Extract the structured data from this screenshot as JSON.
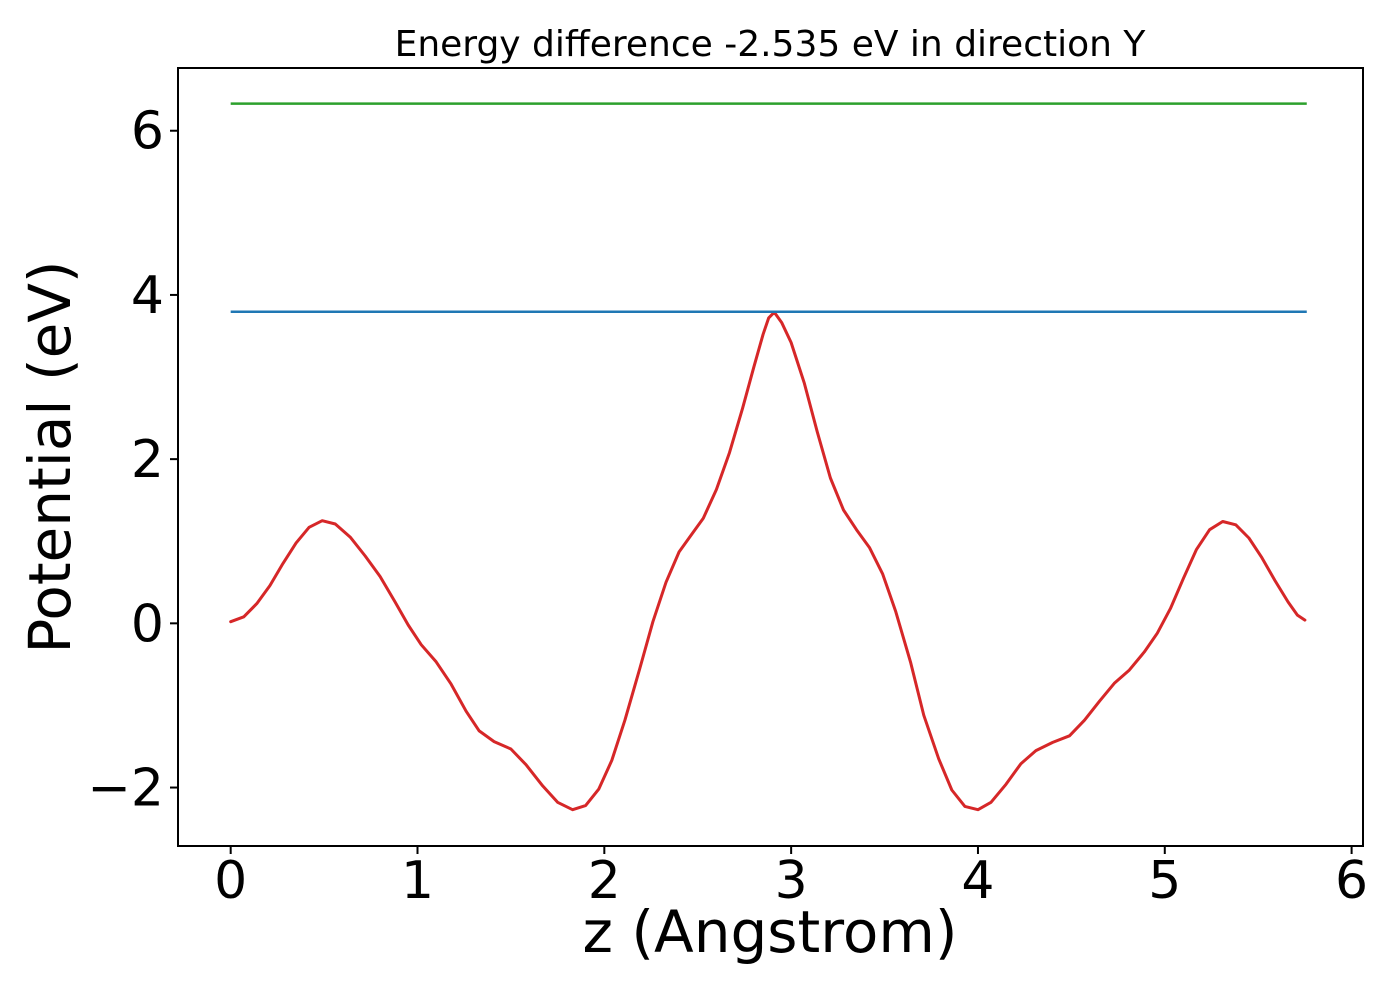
{
  "figure": {
    "background_color": "#ffffff",
    "text_color": "#000000",
    "axis_color": "#000000"
  },
  "chart_data": {
    "type": "line",
    "title": "Energy difference -2.535 eV in direction Y",
    "xlabel": "z (Angstrom)",
    "ylabel": "Potential (eV)",
    "xlim": [
      -0.282,
      6.061
    ],
    "ylim": [
      -2.712,
      6.764
    ],
    "grid": false,
    "legend": false,
    "x_ticks": [
      {
        "value": 0,
        "label": "0"
      },
      {
        "value": 1,
        "label": "1"
      },
      {
        "value": 2,
        "label": "2"
      },
      {
        "value": 3,
        "label": "3"
      },
      {
        "value": 4,
        "label": "4"
      },
      {
        "value": 5,
        "label": "5"
      },
      {
        "value": 6,
        "label": "6"
      }
    ],
    "y_ticks": [
      {
        "value": -2,
        "label": "−2"
      },
      {
        "value": 0,
        "label": "0"
      },
      {
        "value": 2,
        "label": "2"
      },
      {
        "value": 4,
        "label": "4"
      },
      {
        "value": 6,
        "label": "6"
      }
    ],
    "series": [
      {
        "name": "potential-profile",
        "kind": "curve",
        "color": "#d62728",
        "line_width": 3,
        "points": [
          [
            0.0,
            0.02
          ],
          [
            0.07,
            0.08
          ],
          [
            0.14,
            0.24
          ],
          [
            0.21,
            0.46
          ],
          [
            0.28,
            0.73
          ],
          [
            0.35,
            0.98
          ],
          [
            0.42,
            1.17
          ],
          [
            0.49,
            1.25
          ],
          [
            0.56,
            1.21
          ],
          [
            0.64,
            1.05
          ],
          [
            0.72,
            0.82
          ],
          [
            0.8,
            0.57
          ],
          [
            0.88,
            0.26
          ],
          [
            0.95,
            -0.02
          ],
          [
            1.02,
            -0.26
          ],
          [
            1.1,
            -0.47
          ],
          [
            1.18,
            -0.74
          ],
          [
            1.26,
            -1.07
          ],
          [
            1.33,
            -1.31
          ],
          [
            1.41,
            -1.44
          ],
          [
            1.5,
            -1.53
          ],
          [
            1.58,
            -1.72
          ],
          [
            1.67,
            -1.98
          ],
          [
            1.75,
            -2.18
          ],
          [
            1.83,
            -2.27
          ],
          [
            1.9,
            -2.22
          ],
          [
            1.97,
            -2.02
          ],
          [
            2.04,
            -1.67
          ],
          [
            2.11,
            -1.18
          ],
          [
            2.19,
            -0.55
          ],
          [
            2.26,
            0.02
          ],
          [
            2.33,
            0.5
          ],
          [
            2.4,
            0.87
          ],
          [
            2.47,
            1.09
          ],
          [
            2.53,
            1.28
          ],
          [
            2.6,
            1.63
          ],
          [
            2.67,
            2.08
          ],
          [
            2.74,
            2.62
          ],
          [
            2.8,
            3.12
          ],
          [
            2.85,
            3.52
          ],
          [
            2.88,
            3.72
          ],
          [
            2.91,
            3.79
          ],
          [
            2.95,
            3.66
          ],
          [
            3.0,
            3.42
          ],
          [
            3.07,
            2.93
          ],
          [
            3.14,
            2.33
          ],
          [
            3.21,
            1.77
          ],
          [
            3.28,
            1.38
          ],
          [
            3.35,
            1.14
          ],
          [
            3.42,
            0.92
          ],
          [
            3.49,
            0.6
          ],
          [
            3.56,
            0.14
          ],
          [
            3.64,
            -0.48
          ],
          [
            3.71,
            -1.12
          ],
          [
            3.79,
            -1.65
          ],
          [
            3.86,
            -2.03
          ],
          [
            3.93,
            -2.23
          ],
          [
            4.0,
            -2.27
          ],
          [
            4.07,
            -2.18
          ],
          [
            4.15,
            -1.96
          ],
          [
            4.23,
            -1.71
          ],
          [
            4.31,
            -1.55
          ],
          [
            4.4,
            -1.45
          ],
          [
            4.49,
            -1.37
          ],
          [
            4.57,
            -1.18
          ],
          [
            4.65,
            -0.95
          ],
          [
            4.73,
            -0.73
          ],
          [
            4.81,
            -0.57
          ],
          [
            4.89,
            -0.35
          ],
          [
            4.96,
            -0.12
          ],
          [
            5.03,
            0.18
          ],
          [
            5.1,
            0.55
          ],
          [
            5.17,
            0.9
          ],
          [
            5.24,
            1.14
          ],
          [
            5.31,
            1.24
          ],
          [
            5.38,
            1.2
          ],
          [
            5.45,
            1.04
          ],
          [
            5.52,
            0.8
          ],
          [
            5.59,
            0.52
          ],
          [
            5.66,
            0.26
          ],
          [
            5.71,
            0.1
          ],
          [
            5.75,
            0.04
          ]
        ]
      },
      {
        "name": "reference-level-blue",
        "kind": "hline",
        "color": "#1f77b4",
        "line_width": 2.5,
        "y": 3.795,
        "x_range": [
          0,
          5.76
        ]
      },
      {
        "name": "reference-level-green",
        "kind": "hline",
        "color": "#2ca02c",
        "line_width": 2.5,
        "y": 6.33,
        "x_range": [
          0,
          5.76
        ]
      }
    ]
  }
}
